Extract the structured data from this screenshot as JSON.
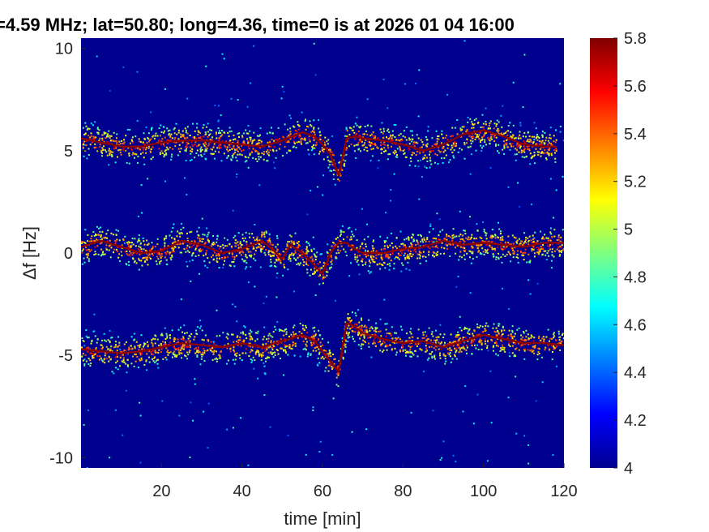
{
  "chart_data": {
    "type": "heatmap",
    "title": "=4.59 MHz;  lat=50.80; long=4.36, time=0 is at 2026 01 04 16:00",
    "xlabel": "time [min]",
    "ylabel": "Δf [Hz]",
    "xlim": [
      0,
      120
    ],
    "ylim": [
      -10.5,
      10.5
    ],
    "x_ticks": [
      20,
      40,
      60,
      80,
      100,
      120
    ],
    "x_tick_labels": [
      "20",
      "40",
      "60",
      "80",
      "100",
      "120"
    ],
    "y_ticks": [
      10,
      5,
      0,
      -5,
      -10
    ],
    "y_tick_labels": [
      "10",
      "5",
      "0",
      "-5",
      "-10"
    ],
    "colorbar": {
      "range": [
        4,
        5.8
      ],
      "ticks": [
        5.8,
        5.6,
        5.4,
        5.2,
        5,
        4.8,
        4.6,
        4.4,
        4.2,
        4
      ],
      "tick_labels": [
        "5.8",
        "5.6",
        "5.4",
        "5.2",
        "5",
        "4.8",
        "4.6",
        "4.4",
        "4.2",
        "4"
      ],
      "colormap": "jet",
      "background_color": "#00008f"
    },
    "series": [
      {
        "offset": 5,
        "x": [
          0,
          5,
          10,
          15,
          20,
          25,
          30,
          35,
          40,
          45,
          50,
          55,
          58,
          60,
          62,
          64,
          66,
          68,
          70,
          75,
          80,
          85,
          90,
          95,
          100,
          105,
          110,
          115,
          118
        ],
        "y": [
          5.6,
          5.4,
          5.2,
          5.2,
          5.4,
          5.5,
          5.5,
          5.4,
          5.3,
          5.2,
          5.5,
          5.9,
          5.7,
          5.3,
          4.8,
          3.8,
          5.6,
          5.7,
          5.6,
          5.5,
          5.3,
          5.0,
          5.3,
          5.8,
          6.0,
          5.7,
          5.3,
          5.2,
          5.2
        ]
      },
      {
        "offset": 0,
        "x": [
          0,
          5,
          10,
          15,
          20,
          25,
          30,
          35,
          40,
          45,
          48,
          50,
          52,
          55,
          58,
          60,
          62,
          64,
          66,
          68,
          70,
          75,
          80,
          85,
          90,
          95,
          100,
          105,
          110,
          115,
          120
        ],
        "y": [
          0.3,
          0.6,
          0.3,
          0.0,
          0.1,
          0.6,
          0.4,
          0.0,
          0.2,
          0.6,
          0.1,
          -0.3,
          0.4,
          0.0,
          -0.6,
          -1.0,
          0.0,
          0.5,
          0.5,
          0.2,
          0.0,
          0.0,
          0.2,
          0.3,
          0.6,
          0.4,
          0.5,
          0.4,
          0.3,
          0.5,
          0.5
        ]
      },
      {
        "offset": -5,
        "x": [
          0,
          5,
          10,
          15,
          20,
          25,
          30,
          35,
          40,
          45,
          50,
          55,
          58,
          60,
          62,
          64,
          66,
          68,
          70,
          75,
          80,
          85,
          90,
          95,
          100,
          105,
          110,
          115,
          120
        ],
        "y": [
          -4.7,
          -4.8,
          -4.9,
          -4.8,
          -4.6,
          -4.4,
          -4.5,
          -4.6,
          -4.4,
          -4.6,
          -4.3,
          -4.0,
          -4.3,
          -4.8,
          -5.3,
          -5.8,
          -3.4,
          -3.6,
          -3.9,
          -4.2,
          -4.4,
          -4.3,
          -4.6,
          -4.3,
          -4.0,
          -4.2,
          -4.4,
          -4.4,
          -4.5
        ]
      }
    ]
  }
}
